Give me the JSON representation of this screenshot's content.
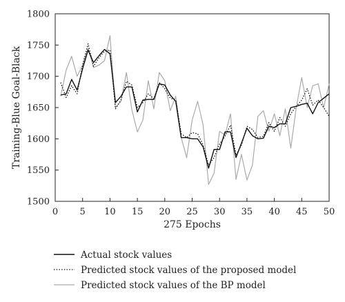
{
  "chart_data": {
    "type": "line",
    "xlabel": "275 Epochs",
    "ylabel": "Training-Blue Goal-Black",
    "xlim": [
      0,
      50
    ],
    "ylim": [
      1500,
      1800
    ],
    "xticks": [
      0,
      5,
      10,
      15,
      20,
      25,
      30,
      35,
      40,
      45,
      50
    ],
    "yticks": [
      1500,
      1550,
      1600,
      1650,
      1700,
      1750,
      1800
    ],
    "grid": false,
    "legend_position": "bottom",
    "x": [
      1,
      2,
      3,
      4,
      5,
      6,
      7,
      8,
      9,
      10,
      11,
      12,
      13,
      14,
      15,
      16,
      17,
      18,
      19,
      20,
      21,
      22,
      23,
      24,
      25,
      26,
      27,
      28,
      29,
      30,
      31,
      32,
      33,
      34,
      35,
      36,
      37,
      38,
      39,
      40,
      41,
      42,
      43,
      44,
      45,
      46,
      47,
      48,
      49,
      50
    ],
    "series": [
      {
        "name": "Actual stock values",
        "style": "solid",
        "color": "#111111",
        "values": [
          1670,
          1672,
          1695,
          1678,
          1712,
          1742,
          1722,
          1733,
          1743,
          1736,
          1658,
          1668,
          1683,
          1683,
          1643,
          1662,
          1663,
          1663,
          1688,
          1686,
          1670,
          1660,
          1602,
          1602,
          1600,
          1600,
          1587,
          1553,
          1583,
          1583,
          1611,
          1611,
          1570,
          1593,
          1617,
          1605,
          1600,
          1601,
          1620,
          1618,
          1624,
          1624,
          1650,
          1652,
          1655,
          1657,
          1640,
          1658,
          1665,
          1672
        ]
      },
      {
        "name": "Predicted stock values of the proposed model",
        "style": "dotted",
        "color": "#111111",
        "values": [
          1690,
          1666,
          1685,
          1672,
          1718,
          1752,
          1716,
          1730,
          1740,
          1742,
          1648,
          1662,
          1692,
          1686,
          1650,
          1658,
          1672,
          1664,
          1690,
          1680,
          1665,
          1662,
          1608,
          1602,
          1610,
          1608,
          1590,
          1558,
          1570,
          1592,
          1604,
          1622,
          1574,
          1590,
          1620,
          1615,
          1602,
          1604,
          1626,
          1612,
          1634,
          1620,
          1640,
          1652,
          1662,
          1680,
          1654,
          1662,
          1650,
          1636
        ]
      },
      {
        "name": "Predicted stock values of the BP model",
        "style": "solid",
        "color": "#aaaaaa",
        "values": [
          1668,
          1710,
          1732,
          1700,
          1718,
          1745,
          1714,
          1718,
          1725,
          1765,
          1650,
          1660,
          1706,
          1646,
          1611,
          1630,
          1693,
          1648,
          1706,
          1693,
          1645,
          1668,
          1602,
          1570,
          1630,
          1660,
          1622,
          1527,
          1545,
          1612,
          1606,
          1640,
          1535,
          1575,
          1534,
          1558,
          1636,
          1645,
          1612,
          1640,
          1605,
          1648,
          1585,
          1650,
          1698,
          1650,
          1685,
          1688,
          1650,
          1688
        ]
      }
    ]
  }
}
